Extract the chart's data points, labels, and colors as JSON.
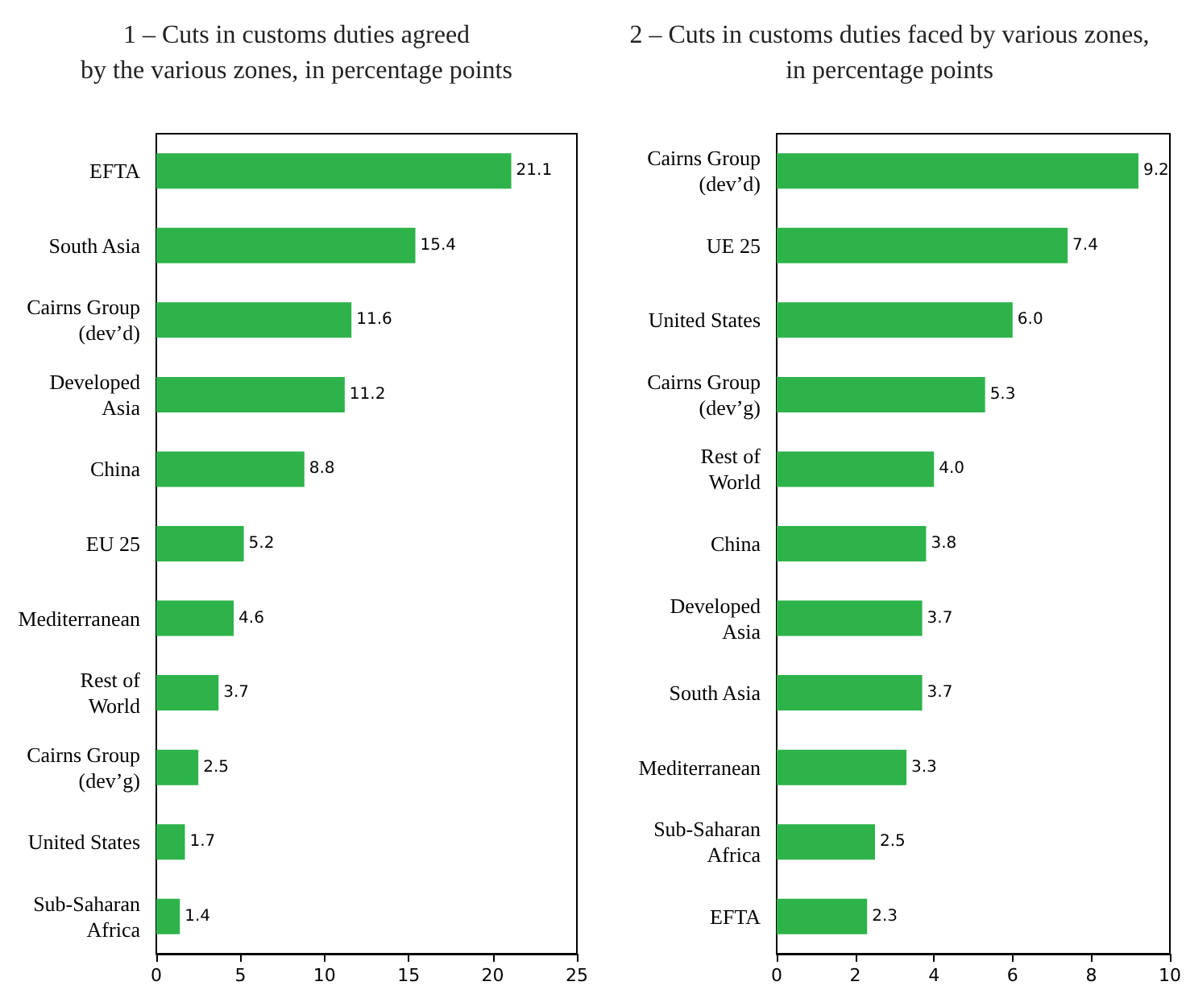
{
  "chart_data": [
    {
      "type": "bar",
      "orientation": "horizontal",
      "title": "1 – Cuts in customs duties agreed\nby the various zones, in percentage points",
      "categories": [
        "EFTA",
        "South Asia",
        "Cairns Group\n(dev’d)",
        "Developed\nAsia",
        "China",
        "EU 25",
        "Mediterranean",
        "Rest of\nWorld",
        "Cairns Group\n(dev’g)",
        "United States",
        "Sub-Saharan\nAfrica"
      ],
      "values": [
        21.1,
        15.4,
        11.6,
        11.2,
        8.8,
        5.2,
        4.6,
        3.7,
        2.5,
        1.7,
        1.4
      ],
      "value_labels": [
        "21.1",
        "15.4",
        "11.6",
        "11.2",
        "8.8",
        "5.2",
        "4.6",
        "3.7",
        "2.5",
        "1.7",
        "1.4"
      ],
      "color": "#2db34a",
      "xlim": [
        0,
        25
      ],
      "xticks": [
        0,
        5,
        10,
        15,
        20,
        25
      ],
      "grid": false
    },
    {
      "type": "bar",
      "orientation": "horizontal",
      "title": "2 – Cuts in customs duties faced by various zones,\nin percentage points",
      "categories": [
        "Cairns Group\n(dev’d)",
        "UE 25",
        "United States",
        "Cairns Group\n(dev’g)",
        "Rest of\nWorld",
        "China",
        "Developed\nAsia",
        "South Asia",
        "Mediterranean",
        "Sub-Saharan\nAfrica",
        "EFTA"
      ],
      "values": [
        9.2,
        7.4,
        6.0,
        5.3,
        4.0,
        3.8,
        3.7,
        3.7,
        3.3,
        2.5,
        2.3
      ],
      "value_labels": [
        "9.2",
        "7.4",
        "6.0",
        "5.3",
        "4.0",
        "3.8",
        "3.7",
        "3.7",
        "3.3",
        "2.5",
        "2.3"
      ],
      "color": "#2db34a",
      "xlim": [
        0,
        10
      ],
      "xticks": [
        0,
        2,
        4,
        6,
        8,
        10
      ],
      "grid": false
    }
  ]
}
